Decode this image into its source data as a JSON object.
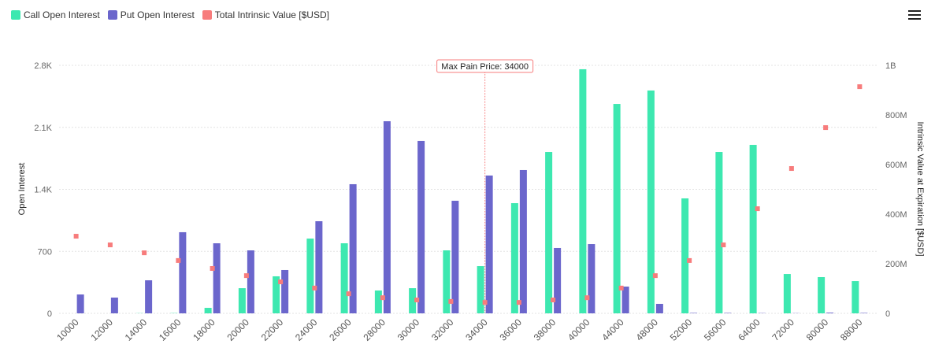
{
  "chart_data": {
    "type": "bar",
    "legend_position": "top-left",
    "grid": true,
    "categories": [
      "10000",
      "12000",
      "14000",
      "16000",
      "18000",
      "20000",
      "22000",
      "24000",
      "26000",
      "28000",
      "30000",
      "32000",
      "34000",
      "36000",
      "38000",
      "40000",
      "44000",
      "48000",
      "52000",
      "56000",
      "64000",
      "72000",
      "80000",
      "88000"
    ],
    "series": [
      {
        "name": "Call Open Interest",
        "type": "bar",
        "axis": "left",
        "color": "#3de8b0",
        "values": [
          0,
          0,
          2,
          3,
          62,
          284,
          418,
          844,
          791,
          258,
          284,
          711,
          533,
          1244,
          1822,
          2756,
          2364,
          2516,
          1298,
          1822,
          1902,
          444,
          409,
          364
        ]
      },
      {
        "name": "Put Open Interest",
        "type": "bar",
        "axis": "left",
        "color": "#6b66cc",
        "values": [
          213,
          178,
          373,
          916,
          791,
          711,
          489,
          1040,
          1458,
          2169,
          1947,
          1271,
          1556,
          1618,
          738,
          782,
          302,
          107,
          5,
          5,
          3,
          2,
          8,
          5
        ]
      },
      {
        "name": "Total Intrinsic Value [$USD]",
        "type": "scatter",
        "axis": "right",
        "color": "#f77c7c",
        "values": [
          311000000,
          276000000,
          244000000,
          213000000,
          181000000,
          152000000,
          127000000,
          102000000,
          79000000,
          63000000,
          54000000,
          48000000,
          44000000,
          44000000,
          54000000,
          63000000,
          102000000,
          152000000,
          213000000,
          276000000,
          422000000,
          584000000,
          749000000,
          914000000
        ]
      }
    ],
    "y_left": {
      "label": "Open Interest",
      "range": [
        0,
        2800
      ],
      "ticks": [
        0,
        700,
        1400,
        2100,
        2800
      ],
      "tick_labels": [
        "0",
        "700",
        "1.4K",
        "2.1K",
        "2.8K"
      ]
    },
    "y_right": {
      "label": "Intrinsic Value at Expiration [$USD]",
      "range": [
        0,
        1000000000
      ],
      "ticks": [
        0,
        200000000,
        400000000,
        600000000,
        800000000,
        1000000000
      ],
      "tick_labels": [
        "0",
        "200M",
        "400M",
        "600M",
        "800M",
        "1B"
      ]
    },
    "annotation": {
      "label": "Max Pain Price: 34000",
      "category": "34000",
      "color": "#f77c7c"
    }
  },
  "menu_icon": "hamburger-menu-icon"
}
